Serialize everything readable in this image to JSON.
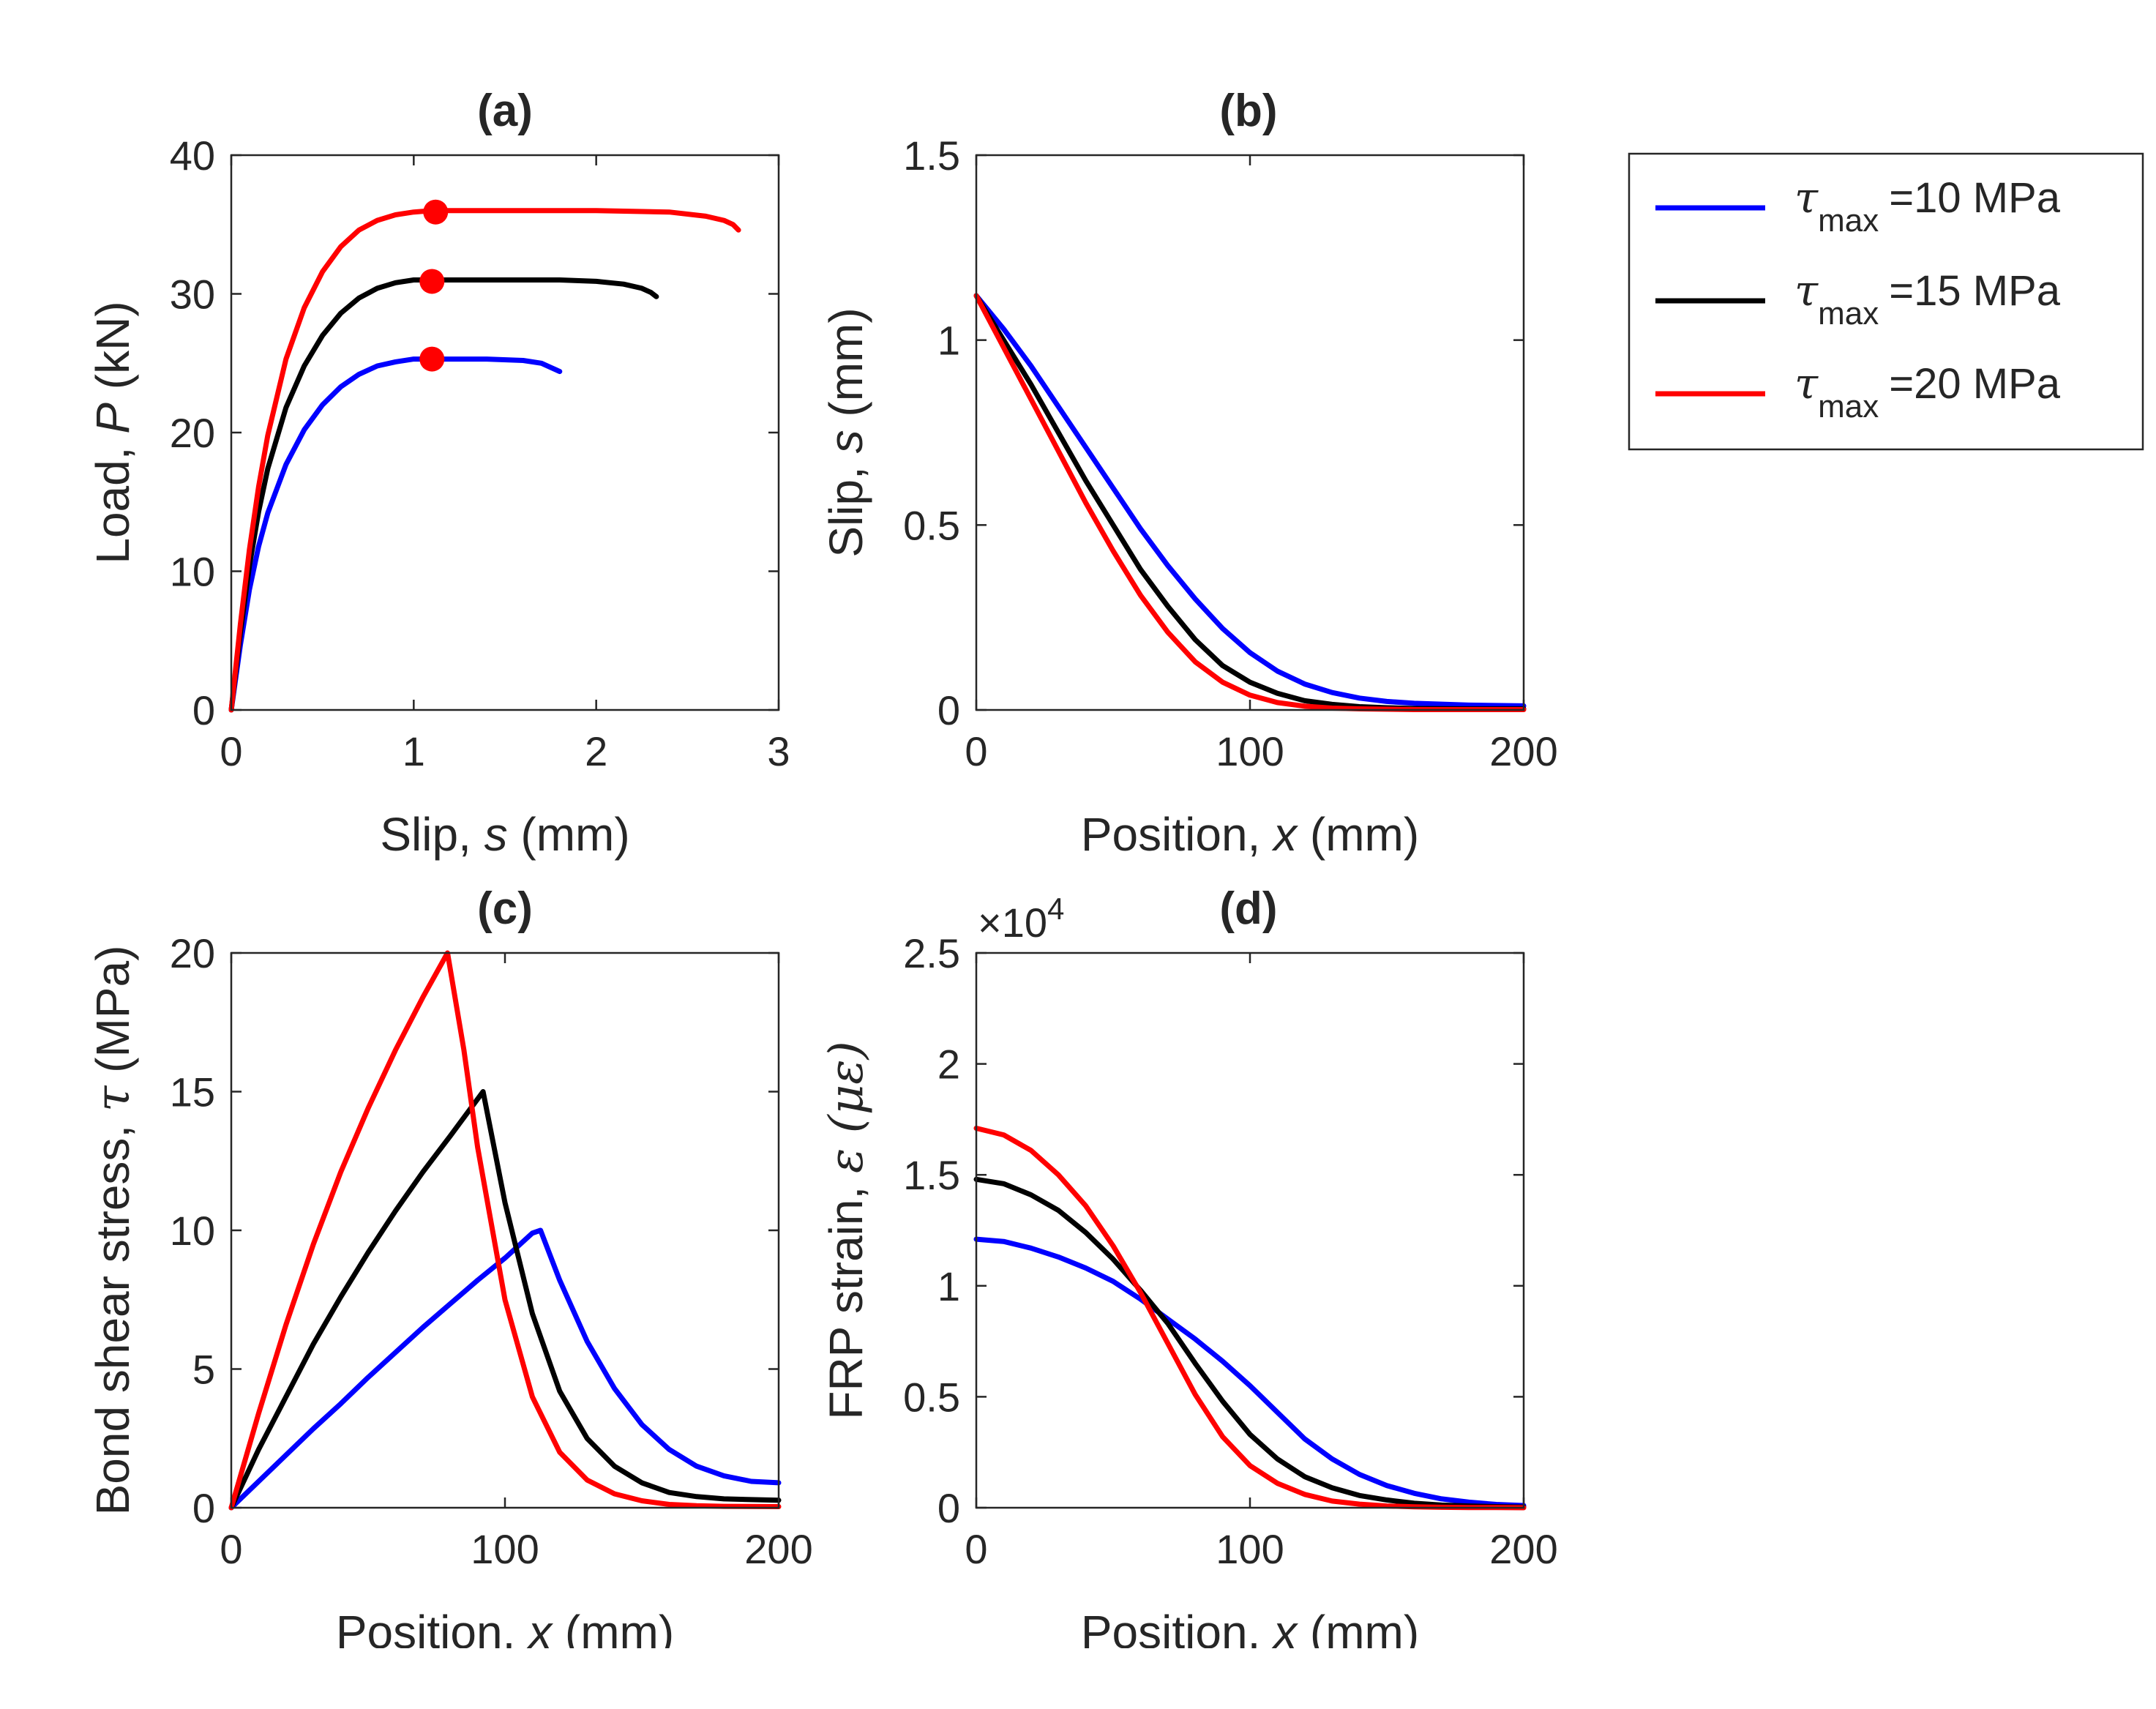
{
  "chart_data": [
    {
      "id": "a",
      "type": "line",
      "title": "(a)",
      "xlabel": {
        "pre": "Slip,  ",
        "var": "s",
        "post": " (mm)"
      },
      "ylabel": {
        "pre": "Load,  ",
        "var": "P",
        "post": " (kN)"
      },
      "xlim": [
        0,
        3
      ],
      "ylim": [
        0,
        40
      ],
      "xticks": [
        "0",
        "1",
        "2",
        "3"
      ],
      "yticks": [
        "0",
        "10",
        "20",
        "30",
        "40"
      ],
      "xtick_values": [
        0,
        1,
        2,
        3
      ],
      "ytick_values": [
        0,
        10,
        20,
        30,
        40
      ],
      "series": [
        {
          "name": "τmax=10 MPa",
          "color": "#0000ff",
          "x": [
            0,
            0.05,
            0.1,
            0.15,
            0.2,
            0.3,
            0.4,
            0.5,
            0.6,
            0.7,
            0.8,
            0.9,
            1.0,
            1.1,
            1.2,
            1.4,
            1.6,
            1.7,
            1.75,
            1.8
          ],
          "y": [
            0,
            4.7,
            8.7,
            11.8,
            14.2,
            17.7,
            20.2,
            22.0,
            23.3,
            24.2,
            24.8,
            25.1,
            25.3,
            25.3,
            25.3,
            25.3,
            25.2,
            25.0,
            24.7,
            24.4
          ]
        },
        {
          "name": "τmax=15 MPa",
          "color": "#000000",
          "x": [
            0,
            0.05,
            0.1,
            0.15,
            0.2,
            0.3,
            0.4,
            0.5,
            0.6,
            0.7,
            0.8,
            0.9,
            1.0,
            1.1,
            1.2,
            1.5,
            1.8,
            2.0,
            2.15,
            2.25,
            2.3,
            2.33
          ],
          "y": [
            0,
            5.6,
            10.4,
            14.3,
            17.4,
            21.8,
            24.8,
            27.0,
            28.6,
            29.7,
            30.4,
            30.8,
            31.0,
            31.0,
            31.0,
            31.0,
            31.0,
            30.9,
            30.7,
            30.4,
            30.1,
            29.8
          ]
        },
        {
          "name": "τmax=20 MPa",
          "color": "#ff0000",
          "x": [
            0,
            0.05,
            0.1,
            0.15,
            0.2,
            0.3,
            0.4,
            0.5,
            0.6,
            0.7,
            0.8,
            0.9,
            1.0,
            1.1,
            1.2,
            1.6,
            2.0,
            2.4,
            2.6,
            2.7,
            2.75,
            2.78
          ],
          "y": [
            0,
            6.2,
            11.6,
            16.1,
            19.8,
            25.3,
            29.0,
            31.6,
            33.4,
            34.6,
            35.3,
            35.7,
            35.9,
            36.0,
            36.0,
            36.0,
            36.0,
            35.9,
            35.6,
            35.3,
            35.0,
            34.6
          ]
        }
      ],
      "markers": [
        {
          "x": 1.1,
          "y": 25.3,
          "color": "#ff0000"
        },
        {
          "x": 1.1,
          "y": 30.9,
          "color": "#ff0000"
        },
        {
          "x": 1.12,
          "y": 35.9,
          "color": "#ff0000"
        }
      ]
    },
    {
      "id": "b",
      "type": "line",
      "title": "(b)",
      "xlabel": {
        "pre": "Position,  ",
        "var": "x",
        "post": " (mm)"
      },
      "ylabel": {
        "pre": "Slip,  ",
        "var": "s",
        "post": " (mm)"
      },
      "xlim": [
        0,
        200
      ],
      "ylim": [
        0,
        1.5
      ],
      "xticks": [
        "0",
        "100",
        "200"
      ],
      "yticks": [
        "0",
        "0.5",
        "1",
        "1.5"
      ],
      "xtick_values": [
        0,
        100,
        200
      ],
      "ytick_values": [
        0,
        0.5,
        1,
        1.5
      ],
      "series": [
        {
          "name": "τmax=10 MPa",
          "color": "#0000ff",
          "x": [
            0,
            10,
            20,
            30,
            40,
            50,
            60,
            70,
            80,
            90,
            100,
            110,
            120,
            130,
            140,
            150,
            160,
            180,
            200
          ],
          "y": [
            1.12,
            1.03,
            0.93,
            0.82,
            0.71,
            0.6,
            0.49,
            0.39,
            0.3,
            0.22,
            0.155,
            0.105,
            0.07,
            0.047,
            0.032,
            0.023,
            0.018,
            0.013,
            0.011
          ]
        },
        {
          "name": "τmax=15 MPa",
          "color": "#000000",
          "x": [
            0,
            10,
            20,
            30,
            40,
            50,
            60,
            70,
            80,
            90,
            100,
            110,
            120,
            130,
            140,
            150,
            160,
            180,
            200
          ],
          "y": [
            1.12,
            1.0,
            0.88,
            0.75,
            0.62,
            0.5,
            0.38,
            0.28,
            0.19,
            0.12,
            0.075,
            0.045,
            0.025,
            0.015,
            0.009,
            0.006,
            0.004,
            0.003,
            0.003
          ]
        },
        {
          "name": "τmax=20 MPa",
          "color": "#ff0000",
          "x": [
            0,
            10,
            20,
            30,
            40,
            50,
            60,
            70,
            80,
            90,
            100,
            110,
            120,
            130,
            140,
            150,
            160,
            180,
            200
          ],
          "y": [
            1.12,
            0.98,
            0.84,
            0.7,
            0.56,
            0.43,
            0.31,
            0.21,
            0.13,
            0.075,
            0.04,
            0.02,
            0.01,
            0.005,
            0.003,
            0.002,
            0.001,
            0.001,
            0.001
          ]
        }
      ]
    },
    {
      "id": "c",
      "type": "line",
      "title": "(c)",
      "xlabel": {
        "pre": "Position,  ",
        "var": "x",
        "post": " (mm)"
      },
      "ylabel": {
        "pre": "Bond shear stress, ",
        "var": "τ",
        "post": " (MPa)"
      },
      "xlim": [
        0,
        200
      ],
      "ylim": [
        0,
        20
      ],
      "xticks": [
        "0",
        "100",
        "200"
      ],
      "yticks": [
        "0",
        "5",
        "10",
        "15",
        "20"
      ],
      "xtick_values": [
        0,
        100,
        200
      ],
      "ytick_values": [
        0,
        5,
        10,
        15,
        20
      ],
      "series": [
        {
          "name": "τmax=10 MPa",
          "color": "#0000ff",
          "x": [
            0,
            10,
            20,
            30,
            40,
            50,
            60,
            70,
            80,
            90,
            100,
            110,
            113,
            120,
            130,
            140,
            150,
            160,
            170,
            180,
            190,
            200
          ],
          "y": [
            0,
            0.95,
            1.9,
            2.85,
            3.75,
            4.7,
            5.6,
            6.5,
            7.35,
            8.2,
            9.0,
            9.9,
            10.0,
            8.2,
            6.0,
            4.3,
            3.0,
            2.1,
            1.5,
            1.15,
            0.95,
            0.9
          ]
        },
        {
          "name": "τmax=15 MPa",
          "color": "#000000",
          "x": [
            0,
            10,
            20,
            30,
            40,
            50,
            60,
            70,
            80,
            92,
            100,
            110,
            120,
            130,
            140,
            150,
            160,
            170,
            180,
            200
          ],
          "y": [
            0,
            2.1,
            4.0,
            5.9,
            7.6,
            9.2,
            10.7,
            12.1,
            13.4,
            15.0,
            11.0,
            7.0,
            4.2,
            2.5,
            1.5,
            0.9,
            0.55,
            0.4,
            0.32,
            0.27
          ]
        },
        {
          "name": "τmax=20 MPa",
          "color": "#ff0000",
          "x": [
            0,
            10,
            20,
            30,
            40,
            50,
            60,
            70,
            79,
            85,
            90,
            100,
            110,
            120,
            130,
            140,
            150,
            160,
            170,
            180,
            200
          ],
          "y": [
            0,
            3.4,
            6.6,
            9.5,
            12.1,
            14.4,
            16.5,
            18.4,
            20.0,
            16.5,
            13.0,
            7.5,
            4.0,
            2.0,
            1.0,
            0.5,
            0.25,
            0.12,
            0.07,
            0.05,
            0.04
          ]
        }
      ]
    },
    {
      "id": "d",
      "type": "line",
      "title": "(d)",
      "xlabel": {
        "pre": "Position,  ",
        "var": "x",
        "post": " (mm)"
      },
      "ylabel": {
        "pre": "FRP strain, ",
        "var": "ε (με)",
        "post": ""
      },
      "exponent": {
        "base": "×10",
        "power": "4"
      },
      "xlim": [
        0,
        200
      ],
      "ylim": [
        0,
        2.5
      ],
      "xticks": [
        "0",
        "100",
        "200"
      ],
      "yticks": [
        "0",
        "0.5",
        "1",
        "1.5",
        "2",
        "2.5"
      ],
      "xtick_values": [
        0,
        100,
        200
      ],
      "ytick_values": [
        0,
        0.5,
        1,
        1.5,
        2,
        2.5
      ],
      "series": [
        {
          "name": "τmax=10 MPa",
          "color": "#0000ff",
          "x": [
            0,
            10,
            20,
            30,
            40,
            50,
            60,
            70,
            80,
            90,
            100,
            110,
            120,
            130,
            140,
            150,
            160,
            170,
            180,
            190,
            200
          ],
          "y": [
            1.21,
            1.2,
            1.17,
            1.13,
            1.08,
            1.02,
            0.94,
            0.85,
            0.76,
            0.66,
            0.55,
            0.43,
            0.31,
            0.22,
            0.15,
            0.1,
            0.065,
            0.04,
            0.025,
            0.015,
            0.01
          ]
        },
        {
          "name": "τmax=15 MPa",
          "color": "#000000",
          "x": [
            0,
            10,
            20,
            30,
            40,
            50,
            60,
            70,
            80,
            90,
            100,
            110,
            120,
            130,
            140,
            150,
            160,
            170,
            180,
            190,
            200
          ],
          "y": [
            1.48,
            1.46,
            1.41,
            1.34,
            1.24,
            1.12,
            0.98,
            0.83,
            0.65,
            0.48,
            0.33,
            0.22,
            0.14,
            0.09,
            0.055,
            0.035,
            0.02,
            0.012,
            0.008,
            0.005,
            0.003
          ]
        },
        {
          "name": "τmax=20 MPa",
          "color": "#ff0000",
          "x": [
            0,
            10,
            20,
            30,
            40,
            50,
            60,
            70,
            80,
            90,
            100,
            110,
            120,
            130,
            140,
            150,
            160,
            170,
            180,
            190,
            200
          ],
          "y": [
            1.71,
            1.68,
            1.61,
            1.5,
            1.36,
            1.18,
            0.97,
            0.74,
            0.51,
            0.32,
            0.19,
            0.11,
            0.06,
            0.03,
            0.016,
            0.008,
            0.004,
            0.002,
            0.001,
            0.001,
            0.0
          ]
        }
      ]
    }
  ],
  "legend": {
    "placement": "top-right",
    "entries": [
      {
        "color": "#0000ff",
        "symbol": "τ",
        "sub": "max",
        "text": "=10 MPa"
      },
      {
        "color": "#000000",
        "symbol": "τ",
        "sub": "max",
        "text": "=15 MPa"
      },
      {
        "color": "#ff0000",
        "symbol": "τ",
        "sub": "max",
        "text": "=20 MPa"
      }
    ]
  }
}
